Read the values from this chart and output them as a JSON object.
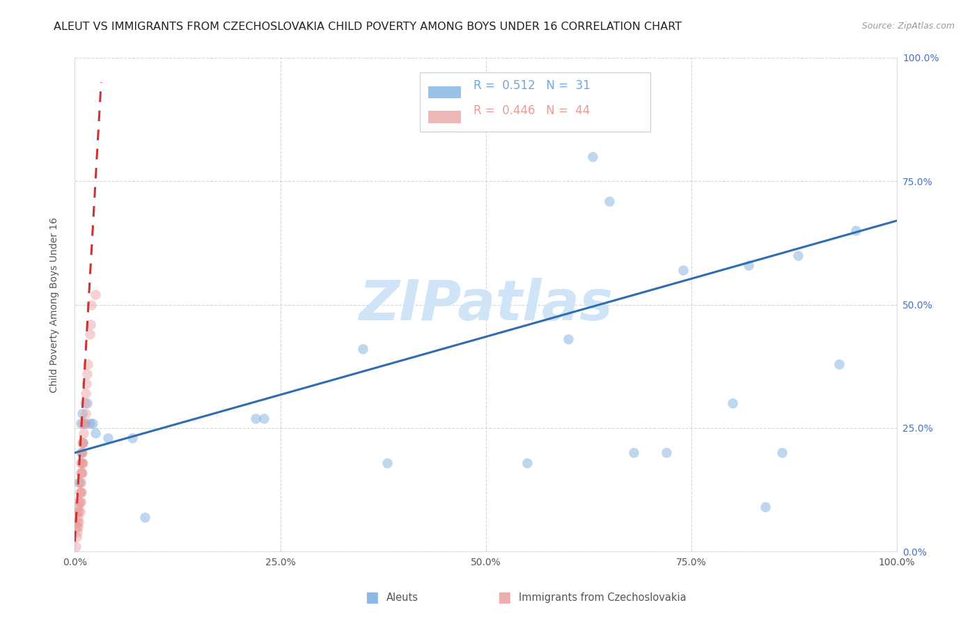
{
  "title": "ALEUT VS IMMIGRANTS FROM CZECHOSLOVAKIA CHILD POVERTY AMONG BOYS UNDER 16 CORRELATION CHART",
  "source": "Source: ZipAtlas.com",
  "ylabel": "Child Poverty Among Boys Under 16",
  "xlim": [
    0,
    1.0
  ],
  "ylim": [
    0,
    1.0
  ],
  "xticks": [
    0.0,
    0.25,
    0.5,
    0.75,
    1.0
  ],
  "yticks": [
    0.0,
    0.25,
    0.5,
    0.75,
    1.0
  ],
  "xticklabels": [
    "0.0%",
    "25.0%",
    "50.0%",
    "75.0%",
    "100.0%"
  ],
  "yticklabels": [
    "0.0%",
    "25.0%",
    "50.0%",
    "75.0%",
    "100.0%"
  ],
  "aleut_color": "#6fa8dc",
  "czech_color": "#ea9999",
  "aleut_R": 0.512,
  "aleut_N": 31,
  "czech_R": 0.446,
  "czech_N": 44,
  "watermark": "ZIPatlas",
  "watermark_color": "#d0e4f7",
  "legend_label_aleut": "Aleuts",
  "legend_label_czech": "Immigrants from Czechoslovakia",
  "aleut_x": [
    0.005,
    0.007,
    0.008,
    0.009,
    0.01,
    0.012,
    0.015,
    0.018,
    0.022,
    0.025,
    0.04,
    0.07,
    0.085,
    0.22,
    0.23,
    0.35,
    0.38,
    0.55,
    0.6,
    0.63,
    0.65,
    0.68,
    0.72,
    0.74,
    0.8,
    0.82,
    0.84,
    0.86,
    0.88,
    0.93,
    0.95
  ],
  "aleut_y": [
    0.14,
    0.26,
    0.2,
    0.28,
    0.22,
    0.26,
    0.3,
    0.26,
    0.26,
    0.24,
    0.23,
    0.23,
    0.07,
    0.27,
    0.27,
    0.41,
    0.18,
    0.18,
    0.43,
    0.8,
    0.71,
    0.2,
    0.2,
    0.57,
    0.3,
    0.58,
    0.09,
    0.2,
    0.6,
    0.38,
    0.65
  ],
  "czech_x": [
    0.001,
    0.002,
    0.002,
    0.003,
    0.003,
    0.003,
    0.004,
    0.004,
    0.004,
    0.005,
    0.005,
    0.005,
    0.006,
    0.006,
    0.006,
    0.006,
    0.007,
    0.007,
    0.007,
    0.007,
    0.007,
    0.008,
    0.008,
    0.008,
    0.008,
    0.009,
    0.009,
    0.009,
    0.009,
    0.01,
    0.01,
    0.01,
    0.011,
    0.012,
    0.012,
    0.013,
    0.013,
    0.014,
    0.015,
    0.016,
    0.018,
    0.019,
    0.02,
    0.025
  ],
  "czech_y": [
    0.01,
    0.03,
    0.05,
    0.04,
    0.06,
    0.08,
    0.05,
    0.07,
    0.09,
    0.06,
    0.08,
    0.1,
    0.08,
    0.1,
    0.12,
    0.14,
    0.1,
    0.12,
    0.14,
    0.16,
    0.18,
    0.12,
    0.16,
    0.18,
    0.2,
    0.16,
    0.18,
    0.2,
    0.22,
    0.18,
    0.22,
    0.26,
    0.24,
    0.26,
    0.3,
    0.28,
    0.32,
    0.34,
    0.36,
    0.38,
    0.44,
    0.46,
    0.5,
    0.52
  ],
  "aleut_trend_x_start": 0.0,
  "aleut_trend_x_end": 1.0,
  "aleut_trend_y_start": 0.2,
  "aleut_trend_y_end": 0.67,
  "czech_trend_x_start": 0.0,
  "czech_trend_x_end": 0.032,
  "czech_trend_y_start": 0.02,
  "czech_trend_y_end": 0.95,
  "marker_size": 110,
  "marker_alpha": 0.45,
  "trend_linewidth": 2.2,
  "grid_color": "#cccccc",
  "grid_linestyle": "--",
  "grid_alpha": 0.8,
  "bg_color": "#ffffff",
  "tick_color_left": "#888888",
  "tick_color_right": "#4472c4",
  "title_color": "#222222",
  "title_fontsize": 11.5,
  "ylabel_fontsize": 10,
  "legend_fontsize": 12
}
